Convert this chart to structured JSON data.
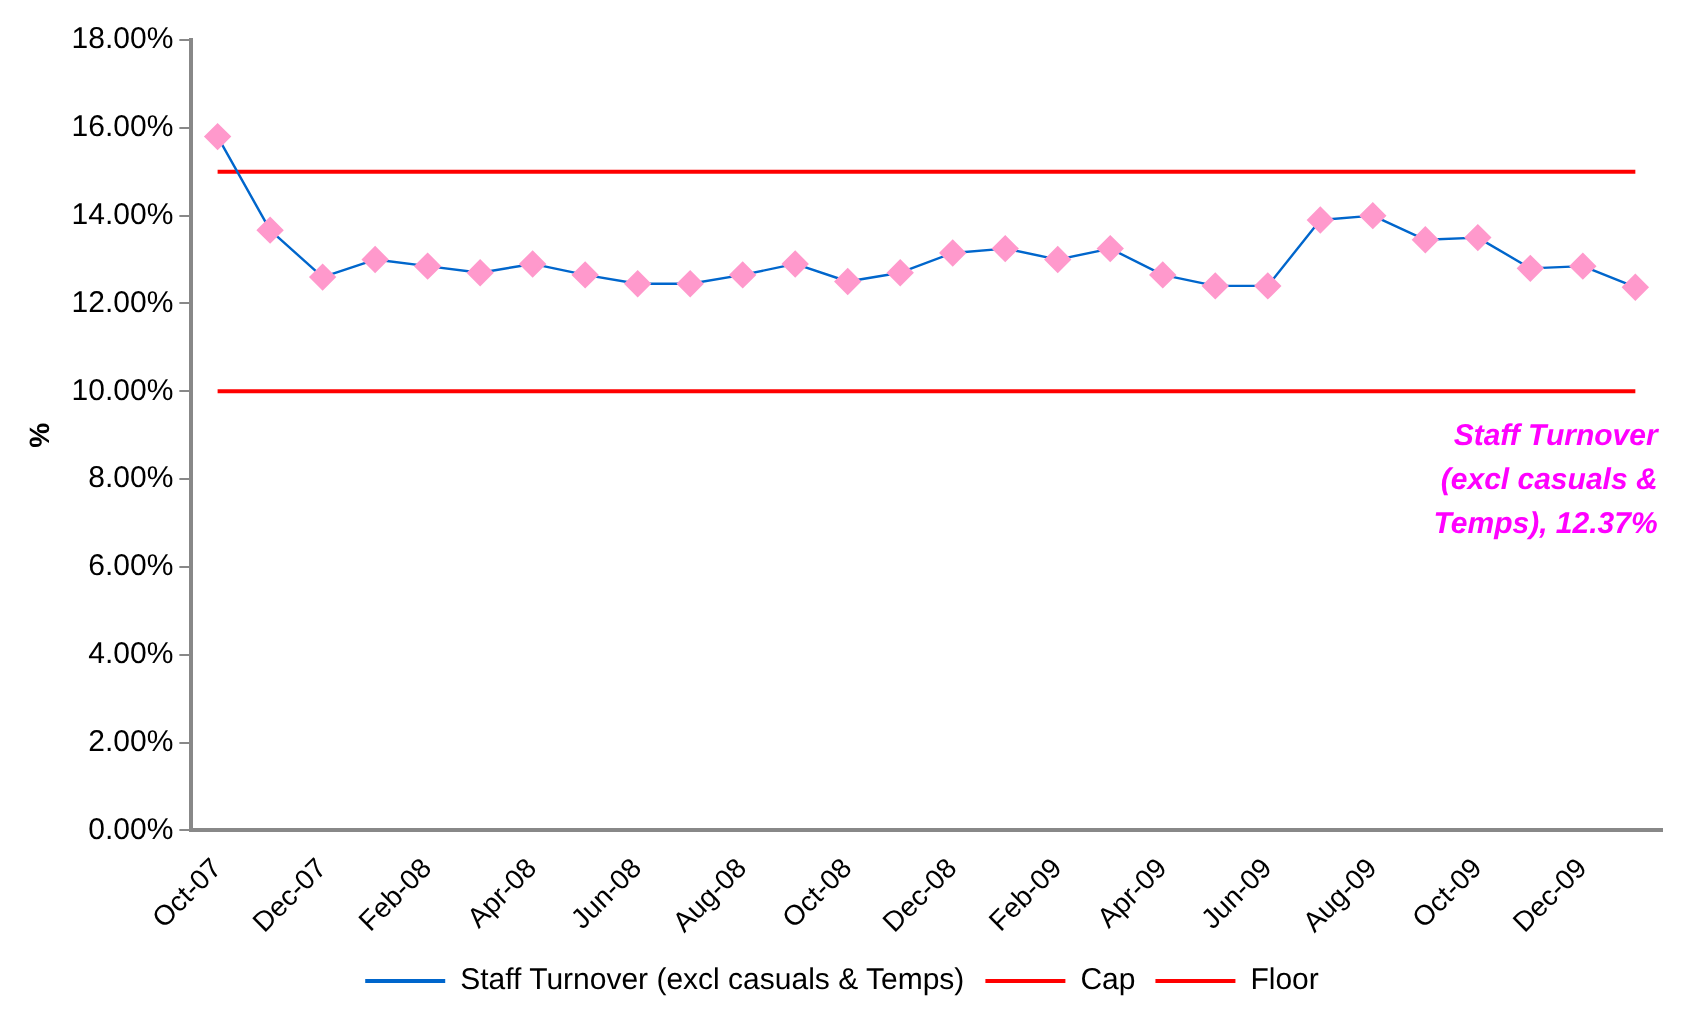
{
  "chart_data": {
    "type": "line",
    "ylabel": "%",
    "categories": [
      "Oct-07",
      null,
      "Dec-07",
      null,
      "Feb-08",
      null,
      "Apr-08",
      null,
      "Jun-08",
      null,
      "Aug-08",
      null,
      "Oct-08",
      null,
      "Dec-08",
      null,
      "Feb-09",
      null,
      "Apr-09",
      null,
      "Jun-09",
      null,
      "Aug-09",
      null,
      "Oct-09",
      null,
      "Dec-09",
      null
    ],
    "series": [
      {
        "name": "Staff Turnover (excl casuals & Temps)",
        "color": "#0066cc",
        "marker": "diamond",
        "values": [
          15.8,
          13.67,
          12.6,
          13.0,
          12.85,
          12.7,
          12.9,
          12.65,
          12.45,
          12.45,
          12.65,
          12.9,
          12.5,
          12.7,
          13.15,
          13.25,
          13.0,
          13.25,
          12.65,
          12.4,
          12.4,
          13.9,
          14.0,
          13.45,
          13.5,
          12.8,
          12.85,
          12.37
        ]
      },
      {
        "name": "Cap",
        "color": "#ff0000",
        "marker": "none",
        "values": [
          15,
          15,
          15,
          15,
          15,
          15,
          15,
          15,
          15,
          15,
          15,
          15,
          15,
          15,
          15,
          15,
          15,
          15,
          15,
          15,
          15,
          15,
          15,
          15,
          15,
          15,
          15,
          15
        ]
      },
      {
        "name": "Floor",
        "color": "#ff0000",
        "marker": "none",
        "values": [
          10,
          10,
          10,
          10,
          10,
          10,
          10,
          10,
          10,
          10,
          10,
          10,
          10,
          10,
          10,
          10,
          10,
          10,
          10,
          10,
          10,
          10,
          10,
          10,
          10,
          10,
          10,
          10
        ]
      }
    ],
    "ylim": [
      0,
      18
    ],
    "yticks": [
      {
        "value": 0,
        "label": "0.00%"
      },
      {
        "value": 2,
        "label": "2.00%"
      },
      {
        "value": 4,
        "label": "4.00%"
      },
      {
        "value": 6,
        "label": "6.00%"
      },
      {
        "value": 8,
        "label": "8.00%"
      },
      {
        "value": 10,
        "label": "10.00%"
      },
      {
        "value": 12,
        "label": "12.00%"
      },
      {
        "value": 14,
        "label": "14.00%"
      },
      {
        "value": 16,
        "label": "16.00%"
      },
      {
        "value": 18,
        "label": "18.00%"
      }
    ],
    "grid": false,
    "legend": "bottom",
    "line_style": "solid",
    "annotations": [
      "Staff Turnover (excl casuals & Temps), 12.37%"
    ]
  }
}
